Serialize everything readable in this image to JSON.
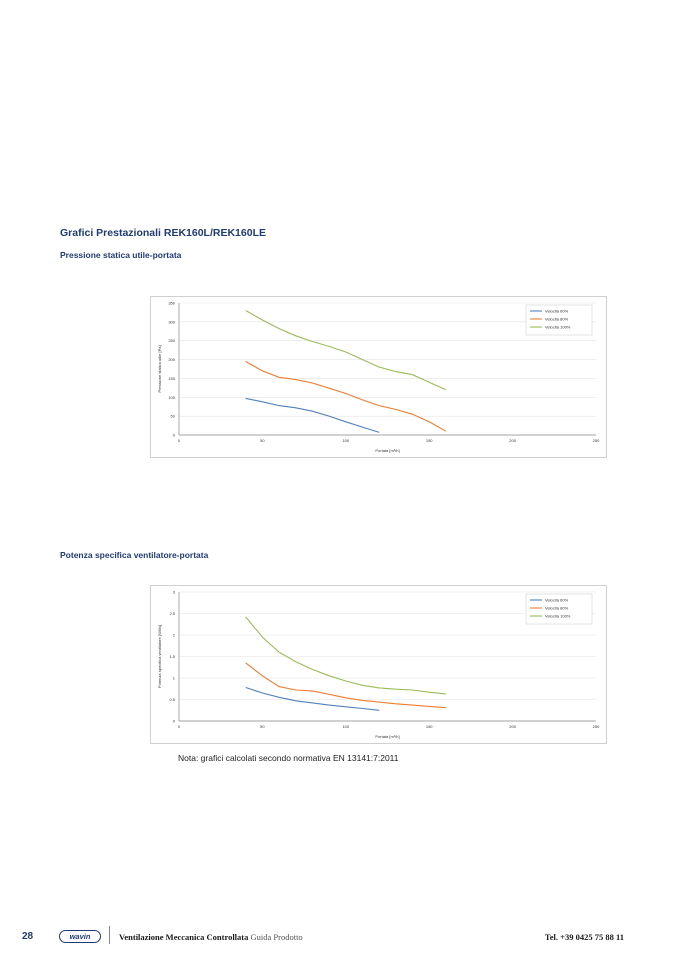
{
  "section_title": "Grafici Prestazionali REK160L/REK160LE",
  "chart1_heading": "Pressione statica utile-portata",
  "chart2_heading": "Potenza specifica ventilatore-portata",
  "note": "Nota: grafici calcolati secondo normativa EN 13141:7:2011",
  "footer": {
    "page_number": "28",
    "logo_text": "wavin",
    "title_bold": "Ventilazione Meccanica Controllata",
    "title_light": "Guida Prodotto",
    "phone": "Tel. +39 0425 75 88 11"
  },
  "chart_data": [
    {
      "type": "line",
      "title": "",
      "xlabel": "Portata [m³/h]",
      "ylabel": "Pressione statica utile [Pa]",
      "xlim": [
        0,
        250
      ],
      "ylim": [
        0,
        350
      ],
      "xticks": [
        0,
        50,
        100,
        150,
        200,
        250
      ],
      "yticks": [
        0,
        50,
        100,
        150,
        200,
        250,
        300,
        350
      ],
      "tick_decimals": 0,
      "legend": "top-right",
      "grid": true,
      "series": [
        {
          "name": "Velocità 60%",
          "color": "#4f81bd",
          "x": [
            40,
            50,
            60,
            70,
            80,
            90,
            100,
            110,
            120
          ],
          "y": [
            97,
            88,
            78,
            72,
            63,
            50,
            35,
            21,
            7
          ]
        },
        {
          "name": "Velocità 80%",
          "color": "#ed7d31",
          "x": [
            40,
            50,
            60,
            70,
            80,
            90,
            100,
            110,
            120,
            130,
            140,
            150,
            160
          ],
          "y": [
            195,
            170,
            153,
            147,
            138,
            124,
            110,
            93,
            78,
            68,
            55,
            35,
            10
          ]
        },
        {
          "name": "Velocità 100%",
          "color": "#9bbb59",
          "x": [
            40,
            50,
            60,
            70,
            80,
            90,
            100,
            110,
            120,
            130,
            140,
            150,
            160
          ],
          "y": [
            330,
            305,
            282,
            263,
            248,
            235,
            220,
            200,
            180,
            168,
            160,
            140,
            120
          ]
        }
      ]
    },
    {
      "type": "line",
      "title": "",
      "xlabel": "Portata [m³/h]",
      "ylabel": "Potenza specifica ventilatore [W/l/s]",
      "xlim": [
        0,
        250
      ],
      "ylim": [
        0,
        3
      ],
      "xticks": [
        0,
        50,
        100,
        150,
        200,
        250
      ],
      "yticks": [
        0,
        0.5,
        1,
        1.5,
        2,
        2.5,
        3
      ],
      "tick_decimals": 1,
      "legend": "top-right",
      "grid": true,
      "series": [
        {
          "name": "Velocità 60%",
          "color": "#4f81bd",
          "x": [
            40,
            50,
            60,
            70,
            80,
            90,
            100,
            110,
            120
          ],
          "y": [
            0.78,
            0.65,
            0.55,
            0.47,
            0.42,
            0.37,
            0.33,
            0.29,
            0.25
          ]
        },
        {
          "name": "Velocità 80%",
          "color": "#ed7d31",
          "x": [
            40,
            50,
            60,
            70,
            80,
            90,
            100,
            110,
            120,
            130,
            140,
            150,
            160
          ],
          "y": [
            1.35,
            1.05,
            0.8,
            0.72,
            0.7,
            0.62,
            0.54,
            0.48,
            0.44,
            0.4,
            0.37,
            0.34,
            0.31
          ]
        },
        {
          "name": "Velocità 100%",
          "color": "#9bbb59",
          "x": [
            40,
            50,
            60,
            70,
            80,
            90,
            100,
            110,
            120,
            130,
            140,
            150,
            160
          ],
          "y": [
            2.42,
            1.95,
            1.6,
            1.38,
            1.2,
            1.05,
            0.93,
            0.83,
            0.77,
            0.74,
            0.72,
            0.67,
            0.63
          ]
        }
      ]
    }
  ]
}
